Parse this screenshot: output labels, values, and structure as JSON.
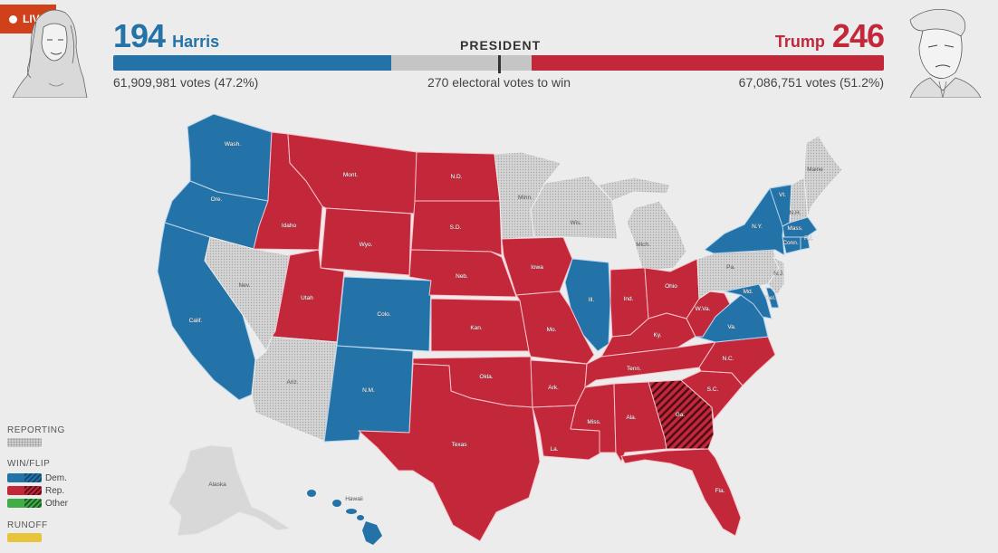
{
  "live_badge": {
    "label": "LIVE",
    "color": "#d0401b"
  },
  "race": {
    "title": "PRESIDENT",
    "threshold_label": "270 electoral votes to win",
    "threshold": 270,
    "total_electoral_votes": 538
  },
  "candidates": {
    "harris": {
      "name": "Harris",
      "electoral_votes": "194",
      "votes_label": "61,909,981 votes (47.2%)",
      "color": "#2473a8",
      "portrait": "harris-portrait-sketch"
    },
    "trump": {
      "name": "Trump",
      "electoral_votes": "246",
      "votes_label": "67,086,751 votes (51.2%)",
      "color": "#c3273a",
      "portrait": "trump-portrait-sketch"
    }
  },
  "legend": {
    "reporting_label": "REPORTING",
    "win_flip_label": "WIN/FLIP",
    "dem_label": "Dem.",
    "rep_label": "Rep.",
    "other_label": "Other",
    "runoff_label": "RUNOFF"
  },
  "colors": {
    "dem": "#2473a8",
    "rep": "#c3273a",
    "reporting": "#d0d0d0",
    "other": "#3fae49",
    "runoff": "#e8c43a",
    "background": "#ececec"
  },
  "states": {
    "wash": {
      "label": "Wash.",
      "status": "dem"
    },
    "ore": {
      "label": "Ore.",
      "status": "dem"
    },
    "calif": {
      "label": "Calif.",
      "status": "dem"
    },
    "nev": {
      "label": "Nev.",
      "status": "reporting"
    },
    "idaho": {
      "label": "Idaho",
      "status": "rep"
    },
    "mont": {
      "label": "Mont.",
      "status": "rep"
    },
    "wyo": {
      "label": "Wyo.",
      "status": "rep"
    },
    "utah": {
      "label": "Utah",
      "status": "rep"
    },
    "ariz": {
      "label": "Ariz.",
      "status": "reporting"
    },
    "colo": {
      "label": "Colo.",
      "status": "dem"
    },
    "nm": {
      "label": "N.M.",
      "status": "dem"
    },
    "nd": {
      "label": "N.D.",
      "status": "rep"
    },
    "sd": {
      "label": "S.D.",
      "status": "rep"
    },
    "neb": {
      "label": "Neb.",
      "status": "rep"
    },
    "kan": {
      "label": "Kan.",
      "status": "rep"
    },
    "okla": {
      "label": "Okla.",
      "status": "rep"
    },
    "texas": {
      "label": "Texas",
      "status": "rep"
    },
    "minn": {
      "label": "Minn.",
      "status": "reporting"
    },
    "iowa": {
      "label": "Iowa",
      "status": "rep"
    },
    "mo": {
      "label": "Mo.",
      "status": "rep"
    },
    "ark": {
      "label": "Ark.",
      "status": "rep"
    },
    "la": {
      "label": "La.",
      "status": "rep"
    },
    "wis": {
      "label": "Wis.",
      "status": "reporting"
    },
    "ill": {
      "label": "Ill.",
      "status": "dem"
    },
    "mich": {
      "label": "Mich.",
      "status": "reporting"
    },
    "ind": {
      "label": "Ind.",
      "status": "rep"
    },
    "ohio": {
      "label": "Ohio",
      "status": "rep"
    },
    "ky": {
      "label": "Ky.",
      "status": "rep"
    },
    "tenn": {
      "label": "Tenn.",
      "status": "rep"
    },
    "miss": {
      "label": "Miss.",
      "status": "rep"
    },
    "ala": {
      "label": "Ala.",
      "status": "rep"
    },
    "ga": {
      "label": "Ga.",
      "status": "rep-flip"
    },
    "fla": {
      "label": "Fla.",
      "status": "rep"
    },
    "sc": {
      "label": "S.C.",
      "status": "rep"
    },
    "nc": {
      "label": "N.C.",
      "status": "rep"
    },
    "va": {
      "label": "Va.",
      "status": "dem"
    },
    "wva": {
      "label": "W.Va.",
      "status": "rep"
    },
    "md": {
      "label": "Md.",
      "status": "dem"
    },
    "del": {
      "label": "Del.",
      "status": "dem"
    },
    "pa": {
      "label": "Pa.",
      "status": "reporting"
    },
    "nj": {
      "label": "N.J.",
      "status": "reporting"
    },
    "ny": {
      "label": "N.Y.",
      "status": "dem"
    },
    "vt": {
      "label": "Vt.",
      "status": "dem"
    },
    "nh": {
      "label": "N.H.",
      "status": "reporting"
    },
    "maine": {
      "label": "Maine",
      "status": "reporting"
    },
    "mass": {
      "label": "Mass.",
      "status": "dem"
    },
    "conn": {
      "label": "Conn.",
      "status": "dem"
    },
    "ri": {
      "label": "R.I.",
      "status": "dem"
    },
    "alaska": {
      "label": "Alaska",
      "status": "reporting"
    },
    "hawaii": {
      "label": "Hawaii",
      "status": "dem"
    }
  }
}
